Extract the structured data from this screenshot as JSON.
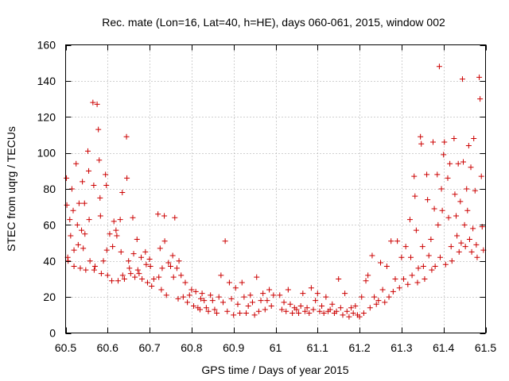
{
  "chart_data": {
    "type": "scatter",
    "title": "Rec. mate (Lon=16, Lat=40, h=HE), days 060-061, 2015, window 002",
    "xlabel": "GPS time / Days of year 2015",
    "ylabel": "STEC from uqrg / TECUs",
    "xlim": [
      60.5,
      61.5
    ],
    "ylim": [
      0,
      160
    ],
    "xticks": [
      60.5,
      60.6,
      60.7,
      60.8,
      60.9,
      61,
      61.1,
      61.2,
      61.3,
      61.4,
      61.5
    ],
    "xtick_labels": [
      "60.5",
      "60.6",
      "60.7",
      "60.8",
      "60.9",
      "61",
      "61.1",
      "61.2",
      "61.3",
      "61.4",
      "61.5"
    ],
    "yticks": [
      0,
      20,
      40,
      60,
      80,
      100,
      120,
      140,
      160
    ],
    "ytick_labels": [
      "0",
      "20",
      "40",
      "60",
      "80",
      "100",
      "120",
      "140",
      "160"
    ],
    "grid": true,
    "marker": "+",
    "color": "#cc0000",
    "series": [
      {
        "name": "STEC",
        "points": [
          [
            60.502,
            86
          ],
          [
            60.503,
            71
          ],
          [
            60.505,
            42
          ],
          [
            60.506,
            40
          ],
          [
            60.51,
            63
          ],
          [
            60.512,
            54
          ],
          [
            60.515,
            80
          ],
          [
            60.518,
            68
          ],
          [
            60.52,
            37
          ],
          [
            60.52,
            46
          ],
          [
            60.525,
            94
          ],
          [
            60.528,
            60
          ],
          [
            60.53,
            49
          ],
          [
            60.532,
            72
          ],
          [
            60.535,
            36
          ],
          [
            60.538,
            57
          ],
          [
            60.54,
            84
          ],
          [
            60.542,
            47
          ],
          [
            60.545,
            72
          ],
          [
            60.546,
            55
          ],
          [
            60.548,
            35
          ],
          [
            60.553,
            101
          ],
          [
            60.555,
            90
          ],
          [
            60.556,
            63
          ],
          [
            60.558,
            40
          ],
          [
            60.565,
            128
          ],
          [
            60.567,
            82
          ],
          [
            60.568,
            35
          ],
          [
            60.57,
            37
          ],
          [
            60.575,
            127
          ],
          [
            60.578,
            113
          ],
          [
            60.58,
            96
          ],
          [
            60.582,
            75
          ],
          [
            60.583,
            65
          ],
          [
            60.585,
            33
          ],
          [
            60.59,
            40
          ],
          [
            60.595,
            88
          ],
          [
            60.597,
            82
          ],
          [
            60.598,
            46
          ],
          [
            60.6,
            32
          ],
          [
            60.605,
            55
          ],
          [
            60.61,
            29
          ],
          [
            60.612,
            48
          ],
          [
            60.615,
            62
          ],
          [
            60.62,
            57
          ],
          [
            60.622,
            54
          ],
          [
            60.625,
            29
          ],
          [
            60.63,
            63
          ],
          [
            60.632,
            45
          ],
          [
            60.635,
            78
          ],
          [
            60.636,
            32
          ],
          [
            60.64,
            30
          ],
          [
            60.645,
            109
          ],
          [
            60.646,
            86
          ],
          [
            60.65,
            40
          ],
          [
            60.652,
            36
          ],
          [
            60.655,
            33
          ],
          [
            60.66,
            64
          ],
          [
            60.662,
            44
          ],
          [
            60.665,
            31
          ],
          [
            60.67,
            52
          ],
          [
            60.672,
            35
          ],
          [
            60.675,
            33
          ],
          [
            60.68,
            42
          ],
          [
            60.682,
            30
          ],
          [
            60.69,
            45
          ],
          [
            60.692,
            38
          ],
          [
            60.695,
            28
          ],
          [
            60.7,
            41
          ],
          [
            60.702,
            37
          ],
          [
            60.705,
            26
          ],
          [
            60.71,
            30
          ],
          [
            60.72,
            66
          ],
          [
            60.722,
            31
          ],
          [
            60.725,
            47
          ],
          [
            60.728,
            24
          ],
          [
            60.73,
            36
          ],
          [
            60.735,
            65
          ],
          [
            60.736,
            51
          ],
          [
            60.74,
            21
          ],
          [
            60.745,
            39
          ],
          [
            60.75,
            37
          ],
          [
            60.755,
            43
          ],
          [
            60.757,
            31
          ],
          [
            60.76,
            64
          ],
          [
            60.765,
            36
          ],
          [
            60.768,
            19
          ],
          [
            60.77,
            40
          ],
          [
            60.775,
            32
          ],
          [
            60.78,
            20
          ],
          [
            60.785,
            28
          ],
          [
            60.79,
            17
          ],
          [
            60.795,
            21
          ],
          [
            60.8,
            24
          ],
          [
            60.805,
            15
          ],
          [
            60.81,
            23
          ],
          [
            60.815,
            14
          ],
          [
            60.82,
            13
          ],
          [
            60.822,
            19
          ],
          [
            60.825,
            22
          ],
          [
            60.83,
            18
          ],
          [
            60.835,
            14
          ],
          [
            60.84,
            12
          ],
          [
            60.845,
            21
          ],
          [
            60.85,
            18
          ],
          [
            60.855,
            13
          ],
          [
            60.86,
            11
          ],
          [
            60.865,
            20
          ],
          [
            60.87,
            32
          ],
          [
            60.875,
            17
          ],
          [
            60.88,
            51
          ],
          [
            60.885,
            12
          ],
          [
            60.89,
            28
          ],
          [
            60.895,
            19
          ],
          [
            60.9,
            10
          ],
          [
            60.905,
            25
          ],
          [
            60.91,
            16
          ],
          [
            60.915,
            11
          ],
          [
            60.92,
            28
          ],
          [
            60.925,
            20
          ],
          [
            60.93,
            11
          ],
          [
            60.935,
            15
          ],
          [
            60.94,
            21
          ],
          [
            60.945,
            17
          ],
          [
            60.95,
            10
          ],
          [
            60.955,
            31
          ],
          [
            60.96,
            12
          ],
          [
            60.965,
            18
          ],
          [
            60.97,
            22
          ],
          [
            60.975,
            13
          ],
          [
            60.98,
            18
          ],
          [
            60.985,
            24
          ],
          [
            60.99,
            15
          ],
          [
            60.995,
            21
          ],
          [
            61.01,
            21
          ],
          [
            61.015,
            13
          ],
          [
            61.02,
            17
          ],
          [
            61.025,
            12
          ],
          [
            61.03,
            24
          ],
          [
            61.035,
            16
          ],
          [
            61.04,
            11
          ],
          [
            61.045,
            14
          ],
          [
            61.05,
            13
          ],
          [
            61.055,
            11
          ],
          [
            61.06,
            15
          ],
          [
            61.065,
            22
          ],
          [
            61.07,
            12
          ],
          [
            61.075,
            14
          ],
          [
            61.08,
            11
          ],
          [
            61.085,
            25
          ],
          [
            61.09,
            13
          ],
          [
            61.095,
            18
          ],
          [
            61.1,
            22
          ],
          [
            61.105,
            12
          ],
          [
            61.11,
            15
          ],
          [
            61.115,
            11
          ],
          [
            61.12,
            20
          ],
          [
            61.125,
            12
          ],
          [
            61.13,
            13
          ],
          [
            61.135,
            16
          ],
          [
            61.14,
            11
          ],
          [
            61.145,
            12
          ],
          [
            61.15,
            30
          ],
          [
            61.155,
            14
          ],
          [
            61.16,
            10
          ],
          [
            61.165,
            22
          ],
          [
            61.17,
            12
          ],
          [
            61.175,
            9
          ],
          [
            61.18,
            14
          ],
          [
            61.185,
            11
          ],
          [
            61.19,
            15
          ],
          [
            61.195,
            10
          ],
          [
            61.2,
            9
          ],
          [
            61.205,
            20
          ],
          [
            61.21,
            11
          ],
          [
            61.215,
            29
          ],
          [
            61.22,
            32
          ],
          [
            61.225,
            14
          ],
          [
            61.23,
            43
          ],
          [
            61.235,
            20
          ],
          [
            61.24,
            16
          ],
          [
            61.245,
            18
          ],
          [
            61.25,
            39
          ],
          [
            61.255,
            24
          ],
          [
            61.26,
            17
          ],
          [
            61.265,
            37
          ],
          [
            61.27,
            20
          ],
          [
            61.275,
            51
          ],
          [
            61.28,
            23
          ],
          [
            61.285,
            30
          ],
          [
            61.29,
            51
          ],
          [
            61.295,
            25
          ],
          [
            61.3,
            42
          ],
          [
            61.305,
            30
          ],
          [
            61.31,
            48
          ],
          [
            61.315,
            27
          ],
          [
            61.32,
            63
          ],
          [
            61.322,
            42
          ],
          [
            61.325,
            32
          ],
          [
            61.33,
            87
          ],
          [
            61.332,
            76
          ],
          [
            61.335,
            57
          ],
          [
            61.338,
            28
          ],
          [
            61.34,
            36
          ],
          [
            61.345,
            109
          ],
          [
            61.347,
            105
          ],
          [
            61.35,
            48
          ],
          [
            61.352,
            37
          ],
          [
            61.355,
            30
          ],
          [
            61.36,
            88
          ],
          [
            61.362,
            74
          ],
          [
            61.365,
            43
          ],
          [
            61.37,
            52
          ],
          [
            61.372,
            35
          ],
          [
            61.375,
            106
          ],
          [
            61.378,
            69
          ],
          [
            61.38,
            37
          ],
          [
            61.385,
            88
          ],
          [
            61.387,
            60
          ],
          [
            61.39,
            148
          ],
          [
            61.392,
            42
          ],
          [
            61.395,
            80
          ],
          [
            61.397,
            68
          ],
          [
            61.4,
            99
          ],
          [
            61.402,
            106
          ],
          [
            61.405,
            38
          ],
          [
            61.41,
            86
          ],
          [
            61.412,
            64
          ],
          [
            61.415,
            94
          ],
          [
            61.418,
            48
          ],
          [
            61.42,
            40
          ],
          [
            61.425,
            108
          ],
          [
            61.427,
            77
          ],
          [
            61.43,
            65
          ],
          [
            61.432,
            54
          ],
          [
            61.435,
            94
          ],
          [
            61.437,
            45
          ],
          [
            61.44,
            73
          ],
          [
            61.442,
            50
          ],
          [
            61.445,
            141
          ],
          [
            61.447,
            95
          ],
          [
            61.45,
            60
          ],
          [
            61.452,
            48
          ],
          [
            61.455,
            80
          ],
          [
            61.457,
            68
          ],
          [
            61.46,
            104
          ],
          [
            61.462,
            52
          ],
          [
            61.465,
            92
          ],
          [
            61.467,
            45
          ],
          [
            61.47,
            58
          ],
          [
            61.472,
            108
          ],
          [
            61.475,
            79
          ],
          [
            61.478,
            49
          ],
          [
            61.48,
            42
          ],
          [
            61.485,
            142
          ],
          [
            61.487,
            130
          ],
          [
            61.49,
            87
          ],
          [
            61.492,
            59
          ],
          [
            61.495,
            46
          ]
        ]
      }
    ]
  }
}
